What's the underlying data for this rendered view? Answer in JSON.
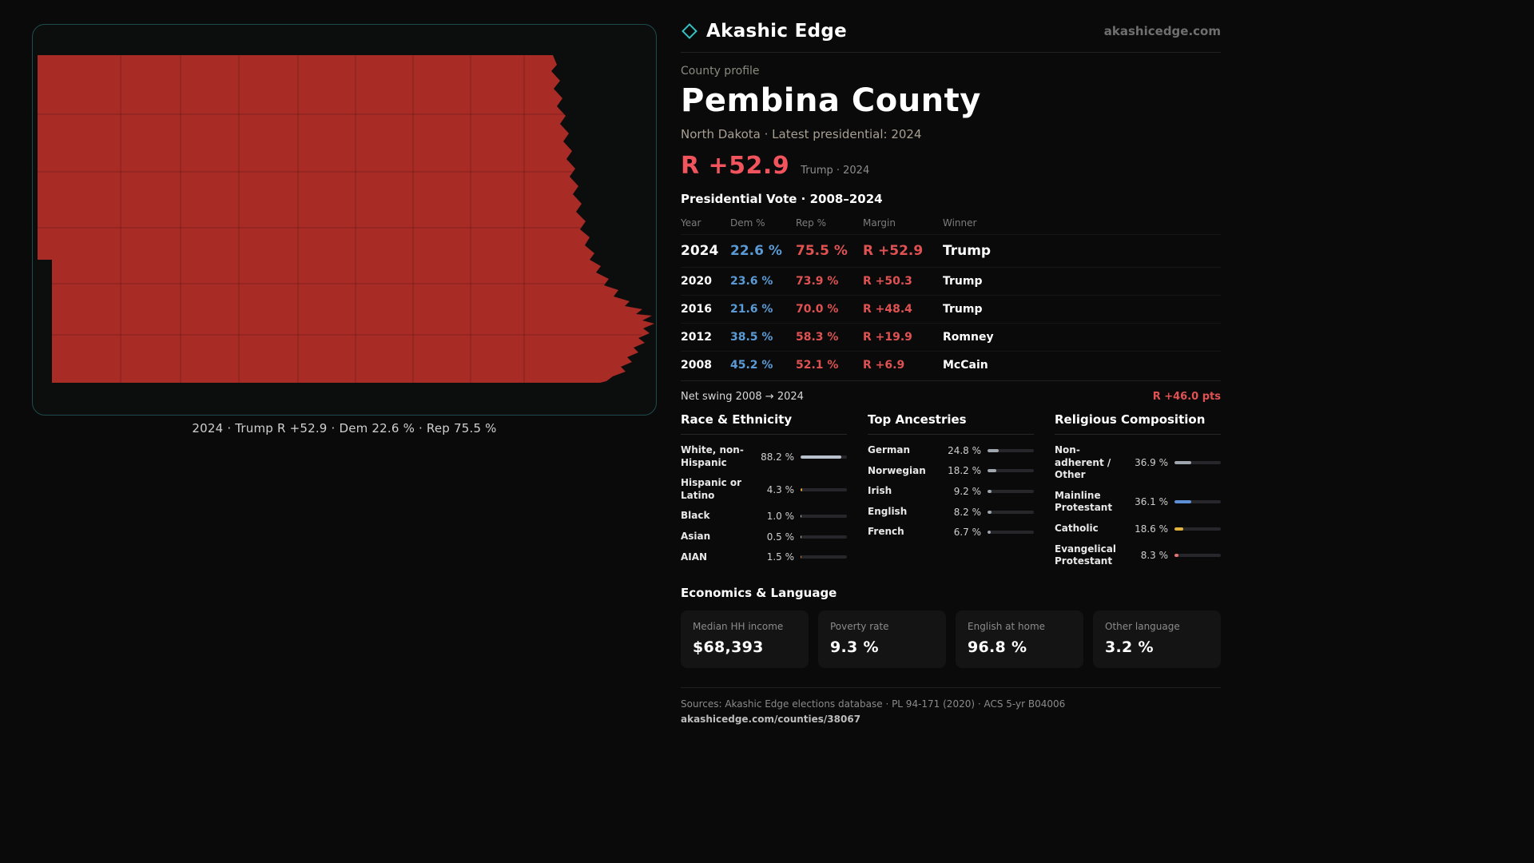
{
  "brand": {
    "name": "Akashic Edge",
    "site": "akashicedge.com"
  },
  "profile": {
    "eyebrow": "County profile",
    "title": "Pembina County",
    "subtitle": "North Dakota · Latest presidential: 2024",
    "margin_big": "R +52.9",
    "margin_context": "Trump · 2024"
  },
  "map": {
    "caption": "2024 · Trump R +52.9 · Dem 22.6 % · Rep 75.5 %"
  },
  "colors": {
    "accent_red": "#f2545e",
    "rep_red": "#e05252",
    "dem_blue": "#5b9bd5",
    "map_fill": "#a82b26",
    "panel_border_teal": "#1d4b4e"
  },
  "vote_table": {
    "title": "Presidential Vote · 2008–2024",
    "columns": [
      "Year",
      "Dem %",
      "Rep %",
      "Margin",
      "Winner"
    ],
    "rows": [
      {
        "year": "2024",
        "dem": "22.6 %",
        "rep": "75.5 %",
        "margin": "R +52.9",
        "winner": "Trump"
      },
      {
        "year": "2020",
        "dem": "23.6 %",
        "rep": "73.9 %",
        "margin": "R +50.3",
        "winner": "Trump"
      },
      {
        "year": "2016",
        "dem": "21.6 %",
        "rep": "70.0 %",
        "margin": "R +48.4",
        "winner": "Trump"
      },
      {
        "year": "2012",
        "dem": "38.5 %",
        "rep": "58.3 %",
        "margin": "R +19.9",
        "winner": "Romney"
      },
      {
        "year": "2008",
        "dem": "45.2 %",
        "rep": "52.1 %",
        "margin": "R +6.9",
        "winner": "McCain"
      }
    ],
    "net_swing_label": "Net swing 2008 → 2024",
    "net_swing_value": "R +46.0 pts"
  },
  "race": {
    "title": "Race & Ethnicity",
    "rows": [
      {
        "label": "White, non-Hispanic",
        "value": "88.2 %",
        "pct": 88.2,
        "color": "#b9c2cc"
      },
      {
        "label": "Hispanic or Latino",
        "value": "4.3 %",
        "pct": 4.3,
        "color": "#e0a33c"
      },
      {
        "label": "Black",
        "value": "1.0 %",
        "pct": 1.0,
        "color": "#c4c4c4"
      },
      {
        "label": "Asian",
        "value": "0.5 %",
        "pct": 0.5,
        "color": "#c4c4c4"
      },
      {
        "label": "AIAN",
        "value": "1.5 %",
        "pct": 1.5,
        "color": "#d97f35"
      }
    ]
  },
  "ancestries": {
    "title": "Top Ancestries",
    "rows": [
      {
        "label": "German",
        "value": "24.8 %",
        "pct": 24.8,
        "color": "#9fa6ad"
      },
      {
        "label": "Norwegian",
        "value": "18.2 %",
        "pct": 18.2,
        "color": "#9fa6ad"
      },
      {
        "label": "Irish",
        "value": "9.2 %",
        "pct": 9.2,
        "color": "#9fa6ad"
      },
      {
        "label": "English",
        "value": "8.2 %",
        "pct": 8.2,
        "color": "#9fa6ad"
      },
      {
        "label": "French",
        "value": "6.7 %",
        "pct": 6.7,
        "color": "#9fa6ad"
      }
    ]
  },
  "religion": {
    "title": "Religious Composition",
    "rows": [
      {
        "label": "Non-adherent / Other",
        "value": "36.9 %",
        "pct": 36.9,
        "color": "#9fa6ad"
      },
      {
        "label": "Mainline Protestant",
        "value": "36.1 %",
        "pct": 36.1,
        "color": "#5d8fd6"
      },
      {
        "label": "Catholic",
        "value": "18.6 %",
        "pct": 18.6,
        "color": "#e2b33c"
      },
      {
        "label": "Evangelical Protestant",
        "value": "8.3 %",
        "pct": 8.3,
        "color": "#e57373"
      }
    ]
  },
  "economics": {
    "title": "Economics & Language",
    "stats": [
      {
        "label": "Median HH income",
        "value": "$68,393"
      },
      {
        "label": "Poverty rate",
        "value": "9.3 %"
      },
      {
        "label": "English at home",
        "value": "96.8 %"
      },
      {
        "label": "Other language",
        "value": "3.2 %"
      }
    ]
  },
  "footer": {
    "sources": "Sources: Akashic Edge elections database · PL 94-171 (2020) · ACS 5-yr B04006",
    "permalink": "akashicedge.com/counties/38067"
  }
}
